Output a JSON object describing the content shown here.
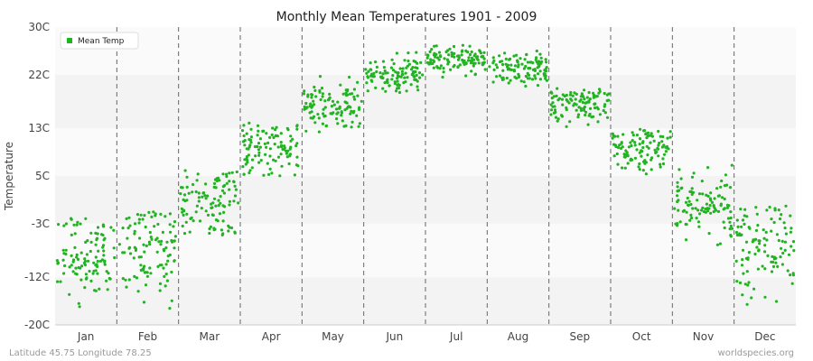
{
  "chart_data": {
    "type": "scatter",
    "title": "Monthly Mean Temperatures 1901 - 2009",
    "ylabel": "Temperature",
    "xlabel": "",
    "y_ticks": [
      "-20C",
      "-12C",
      "-3C",
      "5C",
      "13C",
      "22C",
      "30C"
    ],
    "y_tick_values": [
      -20,
      -12,
      -3,
      5,
      13,
      22,
      30
    ],
    "ylim": [
      -20,
      30
    ],
    "categories": [
      "Jan",
      "Feb",
      "Mar",
      "Apr",
      "May",
      "Jun",
      "Jul",
      "Aug",
      "Sep",
      "Oct",
      "Nov",
      "Dec"
    ],
    "legend": {
      "label": "Mean Temp",
      "position": "top-left"
    },
    "grid": "alternating horizontal bands, dashed vertical month separators",
    "series": [
      {
        "name": "Mean Temp",
        "color": "#22b322",
        "monthly_mean": [
          -8.5,
          -7.5,
          0.5,
          9.5,
          16.5,
          22.0,
          24.5,
          23.0,
          17.0,
          9.0,
          0.0,
          -6.5
        ],
        "monthly_spread": [
          3.5,
          4.0,
          3.2,
          2.5,
          2.0,
          1.5,
          1.2,
          1.4,
          1.5,
          2.0,
          3.0,
          4.0
        ],
        "points_per_month": 109,
        "monthly_range": [
          [
            -18,
            -2
          ],
          [
            -19,
            -1
          ],
          [
            -5,
            6
          ],
          [
            5,
            14
          ],
          [
            12,
            22
          ],
          [
            19,
            26
          ],
          [
            21,
            27
          ],
          [
            19,
            26
          ],
          [
            13,
            20
          ],
          [
            4,
            13
          ],
          [
            -7,
            7
          ],
          [
            -17,
            0
          ]
        ]
      }
    ]
  },
  "footer": {
    "left": "Latitude 45.75 Longitude 78.25",
    "right": "worldspecies.org"
  }
}
